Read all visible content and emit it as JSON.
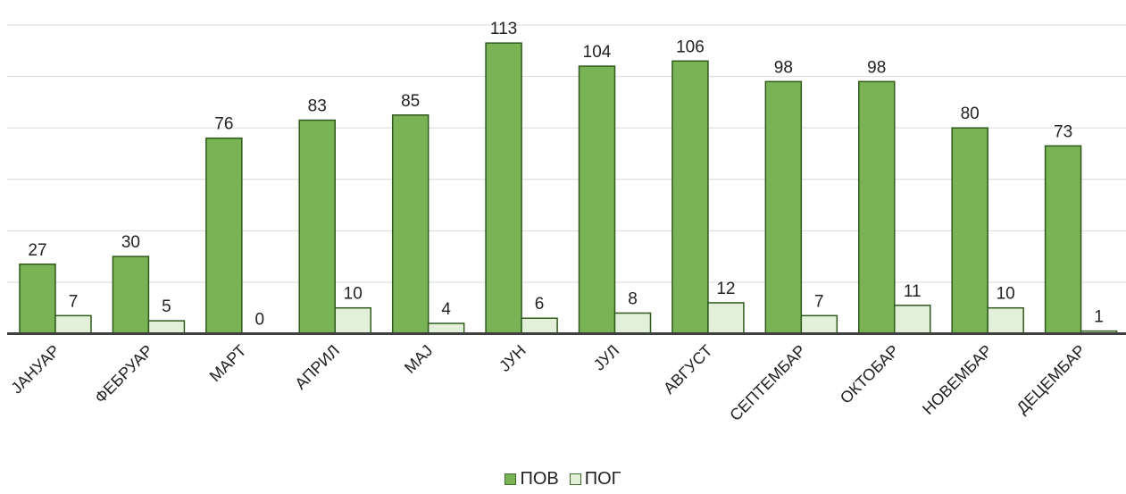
{
  "chart_data": {
    "type": "bar",
    "categories": [
      "ЈАНУАР",
      "ФЕБРУАР",
      "МАРТ",
      "АПРИЛ",
      "МАЈ",
      "ЈУН",
      "ЈУЛ",
      "АВГУСТ",
      "СЕПТЕМБАР",
      "ОКТОБАР",
      "НОВЕМБАР",
      "ДЕЦЕМБАР"
    ],
    "series": [
      {
        "name": "ПОВ",
        "values": [
          27,
          30,
          76,
          83,
          85,
          113,
          104,
          106,
          98,
          98,
          80,
          73
        ],
        "color": "#7ab356",
        "stroke": "#2f5a1c"
      },
      {
        "name": "ПОГ",
        "values": [
          7,
          5,
          0,
          10,
          4,
          6,
          8,
          12,
          7,
          11,
          10,
          1
        ],
        "color": "#e2f0d9",
        "stroke": "#2f5a1c"
      }
    ],
    "ylim": [
      0,
      120
    ],
    "grid": true,
    "legend_position": "bottom"
  }
}
